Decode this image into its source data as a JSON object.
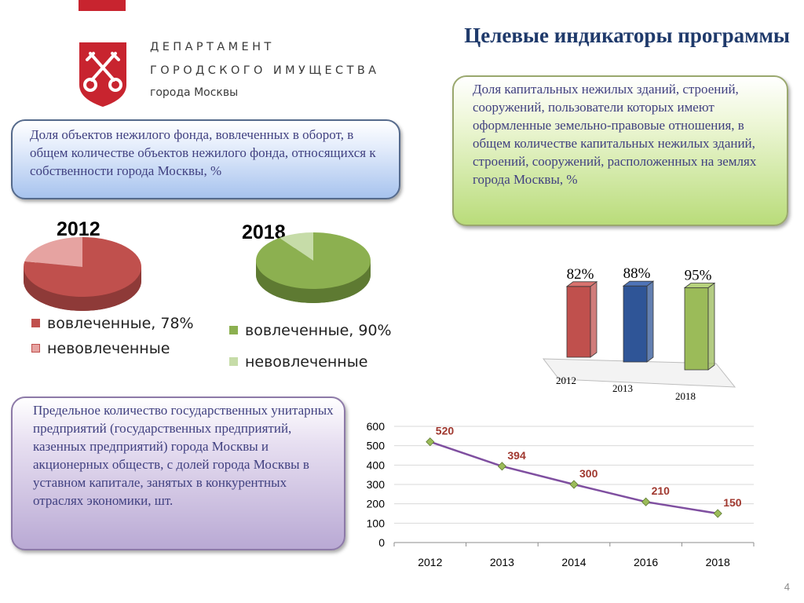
{
  "header": {
    "org_line1": "ДЕПАРТАМЕНТ",
    "org_line2": "ГОРОДСКОГО ИМУЩЕСТВА",
    "org_line3": "города Москвы",
    "title": "Целевые индикаторы программы",
    "page_number": "4"
  },
  "colors": {
    "brand_red": "#c8242f",
    "title": "#1f3a6b",
    "red": "#c0504d",
    "green": "#9bbb59",
    "blue": "#2f5597",
    "line": "#7f4fa0"
  },
  "boxes": {
    "nonresidential": "Доля объектов нежилого фонда, вовлеченных в оборот, в общем количестве объектов нежилого фонда, относящихся к собственности города Москвы, %",
    "land": "Доля капитальных нежилых зданий, строений, сооружений,  пользователи которых имеют оформленные земельно-правовые отношения, в общем количестве капитальных нежилых зданий, строений, сооружений, расположенных на землях города Москвы, %",
    "enterprises": " Предельное количество государственных унитарных предприятий (государственных предприятий, казенных предприятий) города Москвы и акционерных обществ, с долей города Москвы в уставном капитале, занятых в конкурентных отраслях экономики, шт."
  },
  "chart_data": [
    {
      "type": "pie",
      "title": "2012",
      "labels": [
        "вовлеченные, 78%",
        "невовлеченные"
      ],
      "values": [
        78,
        22
      ],
      "colors": [
        "#c0504d",
        "#e6a3a1"
      ]
    },
    {
      "type": "pie",
      "title": "2018",
      "labels": [
        "вовлеченные, 90%",
        "невовлеченные"
      ],
      "values": [
        90,
        10
      ],
      "colors": [
        "#8cb050",
        "#c6dca8"
      ]
    },
    {
      "type": "bar",
      "categories": [
        "2012",
        "2013",
        "2018"
      ],
      "values": [
        82,
        88,
        95
      ],
      "data_labels": [
        "82%",
        "88%",
        "95%"
      ],
      "colors": [
        "#c0504d",
        "#2f5597",
        "#9bbb59"
      ]
    },
    {
      "type": "line",
      "x": [
        "2012",
        "2013",
        "2014",
        "2016",
        "2018"
      ],
      "values": [
        520,
        394,
        300,
        210,
        150
      ],
      "yticks": [
        0,
        100,
        200,
        300,
        400,
        500,
        600
      ],
      "ylim": [
        0,
        600
      ],
      "grid": true
    }
  ]
}
